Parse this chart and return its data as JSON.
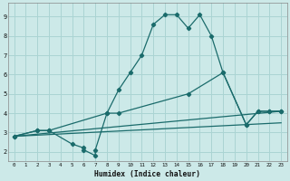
{
  "xlabel": "Humidex (Indice chaleur)",
  "bg_color": "#cce9e8",
  "grid_color": "#aad4d3",
  "line_color": "#1a6b6b",
  "xlim": [
    -0.5,
    23.5
  ],
  "ylim": [
    1.5,
    9.7
  ],
  "xticks": [
    0,
    1,
    2,
    3,
    4,
    5,
    6,
    7,
    8,
    9,
    10,
    11,
    12,
    13,
    14,
    15,
    16,
    17,
    18,
    19,
    20,
    21,
    22,
    23
  ],
  "yticks": [
    2,
    3,
    4,
    5,
    6,
    7,
    8,
    9
  ],
  "line1_x": [
    0,
    2,
    3,
    5,
    6,
    6,
    7,
    7,
    8,
    9,
    10,
    11,
    12,
    13,
    14,
    15,
    16,
    17,
    18,
    20,
    21,
    22,
    23
  ],
  "line1_y": [
    2.8,
    3.1,
    3.1,
    2.4,
    2.2,
    2.1,
    1.8,
    2.1,
    4.0,
    5.2,
    6.1,
    7.0,
    8.6,
    9.1,
    9.1,
    8.4,
    9.1,
    8.0,
    6.1,
    3.4,
    4.1,
    4.1,
    4.1
  ],
  "line2_x": [
    0,
    2,
    3,
    8,
    9,
    15,
    18,
    20,
    21,
    22,
    23
  ],
  "line2_y": [
    2.8,
    3.1,
    3.1,
    4.0,
    4.0,
    5.0,
    6.1,
    3.4,
    4.1,
    4.1,
    4.1
  ],
  "line3_x": [
    0,
    23
  ],
  "line3_y": [
    2.8,
    4.1
  ],
  "line4_x": [
    0,
    23
  ],
  "line4_y": [
    2.8,
    3.5
  ]
}
